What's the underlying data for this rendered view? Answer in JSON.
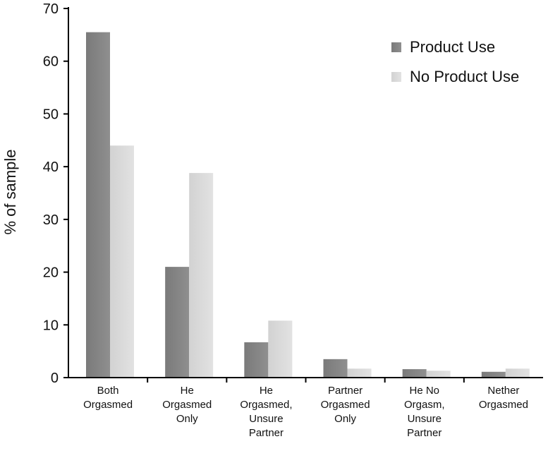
{
  "chart_data": {
    "type": "bar",
    "title": "",
    "xlabel": "",
    "ylabel": "% of sample",
    "ylim": [
      0,
      70
    ],
    "yticks": [
      0,
      10,
      20,
      30,
      40,
      50,
      60,
      70
    ],
    "grid": false,
    "legend_position": "top-right",
    "categories": [
      [
        "Both",
        "Orgasmed"
      ],
      [
        "He",
        "Orgasmed",
        "Only"
      ],
      [
        "He",
        "Orgasmed,",
        "Unsure",
        "Partner"
      ],
      [
        "Partner",
        "Orgasmed",
        "Only"
      ],
      [
        "He No",
        "Orgasm,",
        "Unsure",
        "Partner"
      ],
      [
        "Nether",
        "Orgasmed"
      ]
    ],
    "series": [
      {
        "name": "Product Use",
        "color": "#7a7a7a",
        "color_light": "#8f8f8f",
        "values": [
          65.5,
          21,
          6.7,
          3.5,
          1.6,
          1.1
        ]
      },
      {
        "name": "No Product Use",
        "color": "#d2d2d2",
        "color_light": "#e2e2e2",
        "values": [
          44,
          38.8,
          10.8,
          1.7,
          1.3,
          1.7
        ]
      }
    ]
  }
}
